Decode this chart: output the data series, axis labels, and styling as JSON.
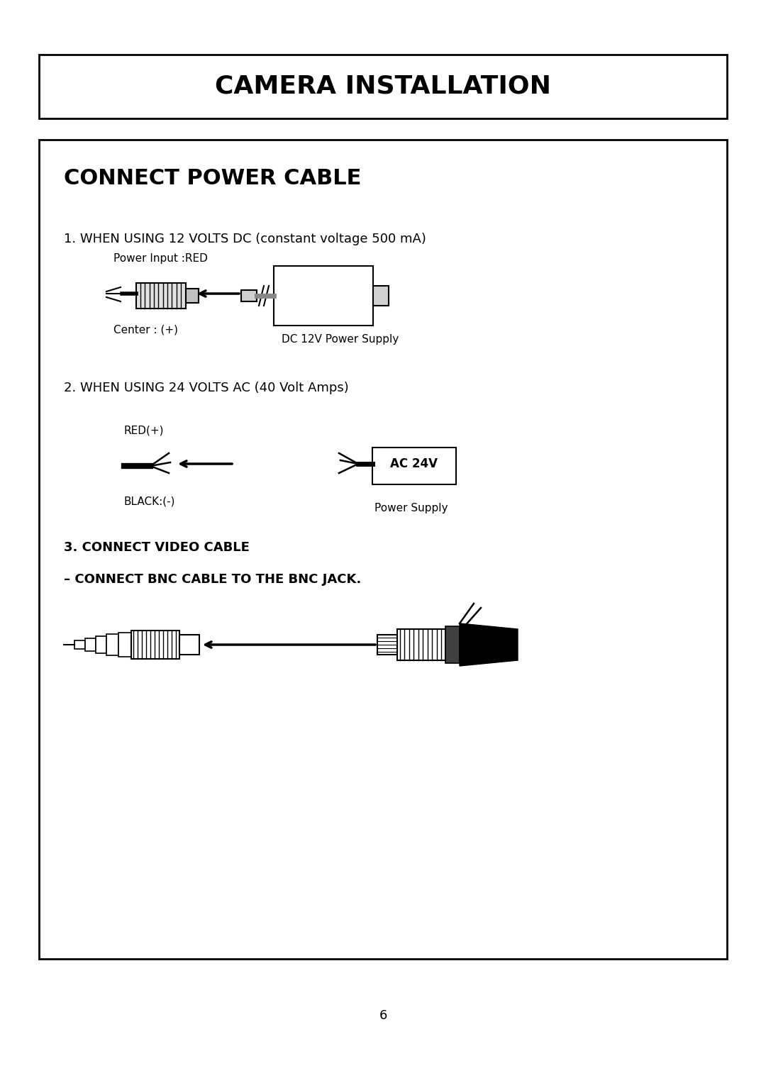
{
  "title": "CAMERA INSTALLATION",
  "section_title": "CONNECT POWER CABLE",
  "sec1_heading": "1. WHEN USING 12 VOLTS DC (constant voltage 500 mA)",
  "sec1_label1": "Power Input :RED",
  "sec1_label2": "Center : (+)",
  "sec1_label3": "DC 12V Power Supply",
  "sec2_heading": "2. WHEN USING 24 VOLTS AC (40 Volt Amps)",
  "sec2_label1": "RED(+)",
  "sec2_label2": "BLACK:(-)",
  "sec2_box": "AC 24V",
  "sec2_label3": "Power Supply",
  "sec3_heading1": "3. CONNECT VIDEO CABLE",
  "sec3_heading2": "– CONNECT BNC CABLE TO THE BNC JACK.",
  "page_number": "6",
  "bg_color": "#ffffff",
  "text_color": "#000000",
  "border_color": "#000000"
}
